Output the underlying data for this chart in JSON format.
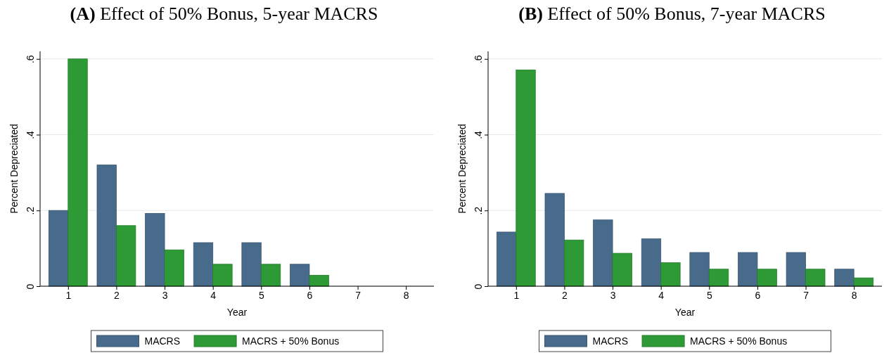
{
  "chart_data": [
    {
      "type": "bar",
      "title": "(A) Effect of 50% Bonus, 5-year MACRS",
      "xlabel": "Year",
      "ylabel": "Percent Depreciated",
      "categories": [
        "1",
        "2",
        "3",
        "4",
        "5",
        "6",
        "7",
        "8"
      ],
      "series": [
        {
          "name": "MACRS",
          "color": "#486b8c",
          "values": [
            0.2,
            0.32,
            0.192,
            0.115,
            0.115,
            0.058,
            null,
            null
          ]
        },
        {
          "name": "MACRS + 50% Bonus",
          "color": "#2e9a36",
          "values": [
            0.6,
            0.16,
            0.096,
            0.058,
            0.058,
            0.029,
            null,
            null
          ]
        }
      ],
      "ylim": [
        0,
        0.62
      ],
      "yticks": [
        {
          "value": 0,
          "label": "0"
        },
        {
          "value": 0.2,
          "label": ".2"
        },
        {
          "value": 0.4,
          "label": ".4"
        },
        {
          "value": 0.6,
          "label": ".6"
        }
      ],
      "grid": "y",
      "legend": "bottom"
    },
    {
      "type": "bar",
      "title": "(B) Effect of 50% Bonus, 7-year MACRS",
      "xlabel": "Year",
      "ylabel": "Percent Depreciated",
      "categories": [
        "1",
        "2",
        "3",
        "4",
        "5",
        "6",
        "7",
        "8"
      ],
      "series": [
        {
          "name": "MACRS",
          "color": "#486b8c",
          "values": [
            0.143,
            0.245,
            0.175,
            0.125,
            0.089,
            0.089,
            0.089,
            0.045
          ]
        },
        {
          "name": "MACRS + 50% Bonus",
          "color": "#2e9a36",
          "values": [
            0.571,
            0.122,
            0.087,
            0.062,
            0.045,
            0.045,
            0.045,
            0.022
          ]
        }
      ],
      "ylim": [
        0,
        0.62
      ],
      "yticks": [
        {
          "value": 0,
          "label": "0"
        },
        {
          "value": 0.2,
          "label": ".2"
        },
        {
          "value": 0.4,
          "label": ".4"
        },
        {
          "value": 0.6,
          "label": ".6"
        }
      ],
      "grid": "y",
      "legend": "bottom"
    }
  ]
}
